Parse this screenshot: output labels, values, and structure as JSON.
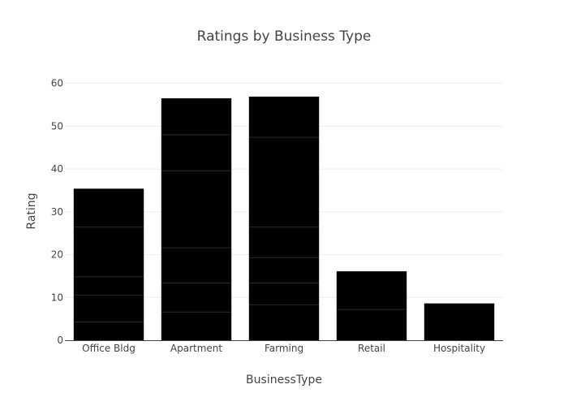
{
  "chart_data": {
    "type": "bar",
    "title": "Ratings by Business Type",
    "xlabel": "BusinessType",
    "ylabel": "Rating",
    "categories": [
      "Office Bldg",
      "Apartment",
      "Farming",
      "Retail",
      "Hospitality"
    ],
    "values": [
      35.4,
      56.5,
      56.9,
      16.1,
      8.6
    ],
    "stack_segment_boundaries": [
      [
        4.3,
        10.5,
        14.8,
        26.4,
        35.4
      ],
      [
        6.6,
        13.4,
        21.6,
        39.6,
        48.0,
        56.5
      ],
      [
        8.3,
        13.4,
        19.3,
        26.4,
        47.4,
        56.9
      ],
      [
        7.2,
        16.1
      ],
      [
        8.6
      ]
    ],
    "yticks": [
      0,
      10,
      20,
      30,
      40,
      50,
      60
    ],
    "ylim": [
      0,
      60.5
    ],
    "grid": true,
    "bar_color": "#000000",
    "segment_line_color": "#444444",
    "grid_color": "#eeeeee"
  }
}
